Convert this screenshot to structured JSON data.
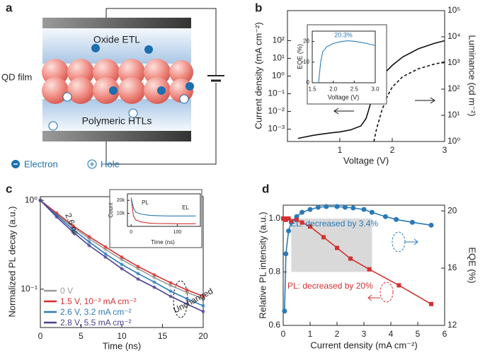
{
  "diagram": {
    "label": "a",
    "etl": "Oxide ETL",
    "film": "QD film",
    "htl": "Polymeric HTLs",
    "electron": "Electron",
    "hole": "Hole"
  },
  "chart_data": [
    {
      "type": "line",
      "label": "b",
      "xlabel": "Voltage (V)",
      "ylabel": "Current density (mA cm⁻²)",
      "y2label": "Luminance (cd m⁻²)",
      "xlim": [
        0,
        3
      ],
      "xticks": [
        1,
        2,
        3
      ],
      "ylim": [
        0.0002,
        5000
      ],
      "ylog": true,
      "yticks": [
        {
          "value": 0.001,
          "label": "10⁻³"
        },
        {
          "value": 0.01,
          "label": "10⁻²"
        },
        {
          "value": 0.1,
          "label": "10⁻¹"
        },
        {
          "value": 1,
          "label": "10⁰"
        },
        {
          "value": 10,
          "label": "10¹"
        },
        {
          "value": 100,
          "label": "10²"
        }
      ],
      "y2lim": [
        1,
        100000
      ],
      "y2log": true,
      "y2ticks": [
        {
          "value": 1,
          "label": "10⁰"
        },
        {
          "value": 10,
          "label": "10¹"
        },
        {
          "value": 100,
          "label": "10²"
        },
        {
          "value": 1000,
          "label": "10³"
        },
        {
          "value": 10000,
          "label": "10⁴"
        },
        {
          "value": 100000,
          "label": "10⁵"
        }
      ],
      "series": [
        {
          "color": "#111111",
          "dash": false,
          "x": [
            0.2,
            0.5,
            0.8,
            1.0,
            1.2,
            1.4,
            1.5,
            1.55,
            1.6,
            1.7,
            1.8,
            2.0,
            2.2,
            2.5,
            2.8,
            3.0
          ],
          "values": [
            0.0003,
            0.00045,
            0.0006,
            0.0007,
            0.0009,
            0.0015,
            0.004,
            0.012,
            0.04,
            0.3,
            1.0,
            4,
            12,
            35,
            70,
            100
          ]
        },
        {
          "color": "#111111",
          "dash": true,
          "axis": "y2",
          "x": [
            1.65,
            1.7,
            1.8,
            1.9,
            2.0,
            2.2,
            2.5,
            2.8,
            3.0
          ],
          "values": [
            1,
            3,
            15,
            50,
            120,
            300,
            600,
            900,
            1100
          ]
        }
      ]
    },
    {
      "type": "line",
      "xlabel": "Voltage (V)",
      "ylabel": "EQE (%)",
      "xlim": [
        1.5,
        3.0
      ],
      "xticks": [
        1.5,
        {
          "value": 2,
          "label": "2.0"
        },
        2.5,
        {
          "value": 3,
          "label": "3.0"
        }
      ],
      "ylim": [
        0,
        25
      ],
      "yticks": [
        0,
        10,
        20
      ],
      "series": [
        {
          "color": "#2a7ab8",
          "x": [
            1.65,
            1.7,
            1.75,
            1.85,
            2.0,
            2.2,
            2.35,
            2.5,
            2.8,
            3.0
          ],
          "values": [
            0,
            10,
            15,
            17.5,
            19,
            20,
            20.3,
            20.1,
            19,
            18
          ]
        }
      ],
      "annotations": [
        {
          "text": "20.3%",
          "color": "#2a7ab8"
        }
      ]
    },
    {
      "type": "line",
      "label": "c",
      "xlabel": "Time (ns)",
      "ylabel": "Normalized PL decay (a.u.)",
      "xlim": [
        0,
        20
      ],
      "xticks": [
        0,
        5,
        10,
        15,
        20
      ],
      "ylim": [
        0.037,
        1.1
      ],
      "ylog": true,
      "yticks": [
        {
          "value": 1,
          "label": "10⁰"
        },
        {
          "value": 0.1,
          "label": "10⁻¹"
        }
      ],
      "legend": "lower left",
      "series": [
        {
          "name": "0 V",
          "color": "#9a9a9a",
          "markers": true,
          "x": [
            0,
            2,
            4,
            6,
            8,
            10,
            12,
            14,
            16,
            18,
            20
          ],
          "values": [
            1,
            0.7,
            0.5,
            0.37,
            0.28,
            0.215,
            0.17,
            0.135,
            0.11,
            0.092,
            0.078
          ]
        },
        {
          "name": "1.5 V, 10⁻³ mA cm⁻²",
          "color": "#d62f2f",
          "markers": true,
          "x": [
            0,
            2,
            4,
            6,
            8,
            10,
            12,
            14,
            16,
            18,
            20
          ],
          "values": [
            1,
            0.72,
            0.52,
            0.39,
            0.3,
            0.23,
            0.18,
            0.145,
            0.118,
            0.098,
            0.083
          ]
        },
        {
          "name": "2.6 V, 3.2 mA cm⁻²",
          "color": "#2a7ab8",
          "markers": true,
          "x": [
            0,
            2,
            4,
            6,
            8,
            10,
            12,
            14,
            16,
            18,
            20
          ],
          "values": [
            1,
            0.68,
            0.47,
            0.34,
            0.25,
            0.19,
            0.15,
            0.12,
            0.095,
            0.078,
            0.065
          ]
        },
        {
          "name": "2.8 V, 5.5 mA cm⁻²",
          "color": "#4b3f8f",
          "markers": true,
          "x": [
            0,
            2,
            4,
            6,
            8,
            10,
            12,
            14,
            16,
            18,
            20
          ],
          "values": [
            1,
            0.65,
            0.44,
            0.31,
            0.23,
            0.17,
            0.13,
            0.105,
            0.083,
            0.068,
            0.056
          ]
        }
      ],
      "annotations": [
        {
          "text": "2.6 ns"
        },
        {
          "text": "Unchanged"
        }
      ]
    },
    {
      "type": "line",
      "xlabel": "Time (ns)",
      "ylabel": "Count",
      "xlim": [
        -8,
        150
      ],
      "xticks": [
        0,
        100
      ],
      "ylim": [
        0,
        25000
      ],
      "yticks": [
        {
          "value": 10000,
          "label": "10k"
        },
        {
          "value": 20000,
          "label": "20k"
        }
      ],
      "series": [
        {
          "color": "#d62f2f",
          "x": [
            0,
            5,
            10,
            20,
            40,
            60,
            80,
            100,
            120,
            140
          ],
          "values": [
            22000,
            8000,
            5000,
            3500,
            2500,
            2200,
            2100,
            2000,
            2000,
            2000
          ]
        },
        {
          "color": "#2a7ab8",
          "x": [
            0,
            5,
            10,
            20,
            40,
            60,
            80,
            100,
            120,
            140
          ],
          "values": [
            22000,
            14000,
            11000,
            9500,
            8500,
            8200,
            8000,
            8000,
            8000,
            8000
          ]
        }
      ],
      "annotations": [
        {
          "text": "PL"
        },
        {
          "text": "EL"
        }
      ]
    },
    {
      "type": "line",
      "label": "d",
      "xlabel": "Current density (mA cm⁻²)",
      "ylabel": "Relative PL intensity (a.u.)",
      "y2label": "EQE (%)",
      "xlim": [
        0,
        6
      ],
      "xticks": [
        0,
        1,
        2,
        3,
        4,
        5,
        6
      ],
      "ylim": [
        0.6,
        1.05
      ],
      "yticks": [
        0.6,
        0.8,
        {
          "value": 1,
          "label": "1.0"
        }
      ],
      "y2lim": [
        12,
        20.4
      ],
      "y2ticks": [
        12,
        16,
        20
      ],
      "highlight": {
        "x": [
          0.3,
          3.3
        ],
        "y": [
          0.8,
          1.0
        ]
      },
      "series": [
        {
          "color": "#2a7ab8",
          "axis": "y2",
          "markers": "circle",
          "x": [
            0.05,
            0.1,
            0.2,
            0.3,
            0.5,
            0.7,
            1.0,
            1.3,
            1.6,
            2.0,
            2.3,
            2.6,
            3.0,
            3.3,
            3.8,
            4.2,
            4.8,
            5.5
          ],
          "values": [
            13,
            17,
            18.6,
            19.2,
            19.6,
            19.9,
            20.1,
            20.25,
            20.3,
            20.3,
            20.25,
            20.2,
            20.1,
            19.9,
            19.6,
            19.4,
            19.2,
            19.0
          ]
        },
        {
          "color": "#d62f2f",
          "markers": "square",
          "x": [
            0,
            0.05,
            0.1,
            0.2,
            0.3,
            0.5,
            0.7,
            1.0,
            1.5,
            2.0,
            2.5,
            3.2,
            4.3,
            5.5
          ],
          "values": [
            1.0,
            1.0,
            0.995,
            1.0,
            0.99,
            0.995,
            0.985,
            0.97,
            0.93,
            0.89,
            0.85,
            0.81,
            0.75,
            0.68
          ]
        }
      ],
      "annotations": [
        {
          "text": "EL: decreased by 3.4%",
          "color": "#2a7ab8"
        },
        {
          "text": "PL: decreased by 20%",
          "color": "#d62f2f"
        }
      ]
    }
  ]
}
